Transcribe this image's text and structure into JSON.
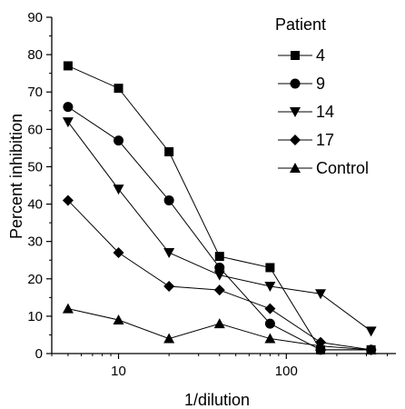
{
  "chart_data": {
    "type": "line",
    "title": "",
    "xlabel": "1/dilution",
    "ylabel": "Percent inhibition",
    "xscale": "log",
    "xlim": [
      4,
      450
    ],
    "ylim": [
      0,
      90
    ],
    "x": [
      5,
      10,
      20,
      40,
      80,
      160,
      320
    ],
    "yticks": [
      "0",
      "10",
      "20",
      "30",
      "40",
      "50",
      "60",
      "70",
      "80",
      "90"
    ],
    "xticks": [
      "10",
      "100"
    ],
    "grid": false,
    "legend": {
      "title": "Patient",
      "placement": "top-right"
    },
    "series": [
      {
        "name": "4",
        "marker": "square",
        "values": [
          77,
          71,
          54,
          26,
          23,
          1,
          1
        ]
      },
      {
        "name": "9",
        "marker": "circle",
        "values": [
          66,
          57,
          41,
          23,
          8,
          1,
          1
        ]
      },
      {
        "name": "14",
        "marker": "triangle-down",
        "values": [
          62,
          44,
          27,
          21,
          18,
          16,
          6
        ]
      },
      {
        "name": "17",
        "marker": "diamond",
        "values": [
          41,
          27,
          18,
          17,
          12,
          3,
          1
        ]
      },
      {
        "name": "Control",
        "marker": "triangle-up",
        "values": [
          12,
          9,
          4,
          8,
          4,
          2,
          1
        ]
      }
    ]
  }
}
